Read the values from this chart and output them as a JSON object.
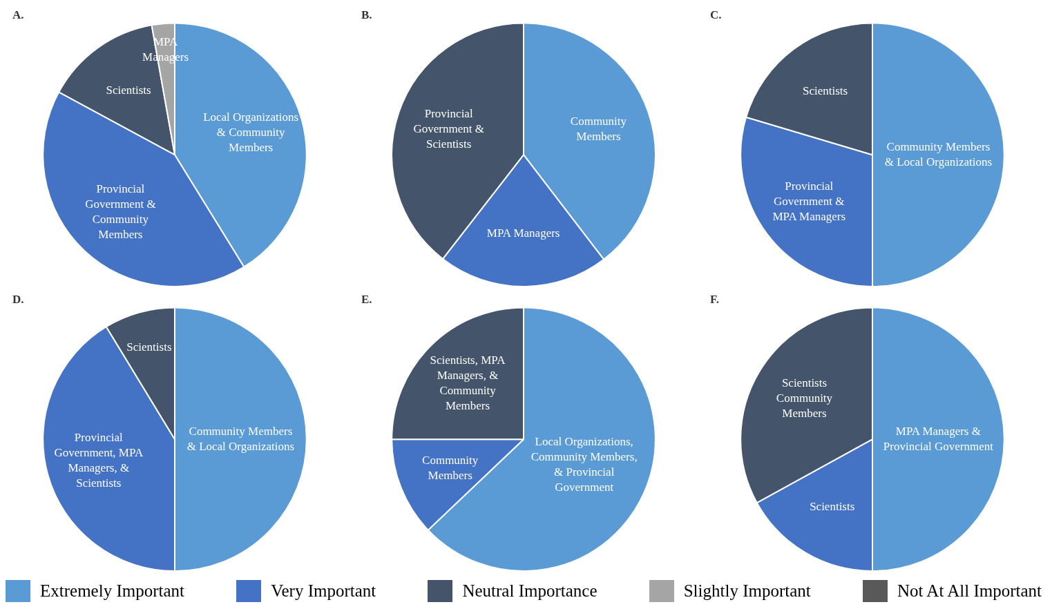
{
  "chart_data": [
    {
      "type": "pie",
      "title": "A.",
      "categories": [
        "Local Organizations & Community Members",
        "Provincial Government & Community Members",
        "Scientists",
        "MPA Managers"
      ],
      "values": [
        41.2,
        41.7,
        14.3,
        2.8
      ],
      "colors": [
        "#5b9bd5",
        "#4472c4",
        "#44546a",
        "#a5a5a5"
      ]
    },
    {
      "type": "pie",
      "title": "B.",
      "categories": [
        "Community Members",
        "MPA Managers",
        "Provincial Government & Scientists"
      ],
      "values": [
        39.6,
        20.9,
        39.5
      ],
      "colors": [
        "#5b9bd5",
        "#4472c4",
        "#44546a"
      ]
    },
    {
      "type": "pie",
      "title": "C.",
      "categories": [
        "Community Members & Local Organizations",
        "Provincial Government & MPA Managers",
        "Scientists"
      ],
      "values": [
        50,
        29.6,
        20.4
      ],
      "colors": [
        "#5b9bd5",
        "#4472c4",
        "#44546a"
      ]
    },
    {
      "type": "pie",
      "title": "D.",
      "categories": [
        "Community Members & Local Organizations",
        "Provincial Government, MPA Managers, & Scientists",
        "Scientists"
      ],
      "values": [
        50,
        41.3,
        8.7
      ],
      "colors": [
        "#5b9bd5",
        "#4472c4",
        "#44546a"
      ]
    },
    {
      "type": "pie",
      "title": "E.",
      "categories": [
        "Local Organizations, Community Members, & Provincial Government",
        "Community Members",
        "Scientists, MPA Managers, & Community Members"
      ],
      "values": [
        62.9,
        12.1,
        25
      ],
      "colors": [
        "#5b9bd5",
        "#4472c4",
        "#44546a"
      ]
    },
    {
      "type": "pie",
      "title": "F.",
      "categories": [
        "MPA Managers & Provincial Government",
        "Scientists",
        "Scientists Community Members"
      ],
      "values": [
        50,
        17,
        33
      ],
      "colors": [
        "#5b9bd5",
        "#4472c4",
        "#44546a"
      ]
    },
    {
      "type": "other",
      "categories": [
        "Extremely Important",
        "Very Important",
        "Neutral Importance",
        "Slightly Important",
        "Not At All Important"
      ],
      "colors": [
        "#5b9bd5",
        "#4472c4",
        "#44546a",
        "#a5a5a5",
        "#595959"
      ]
    }
  ]
}
